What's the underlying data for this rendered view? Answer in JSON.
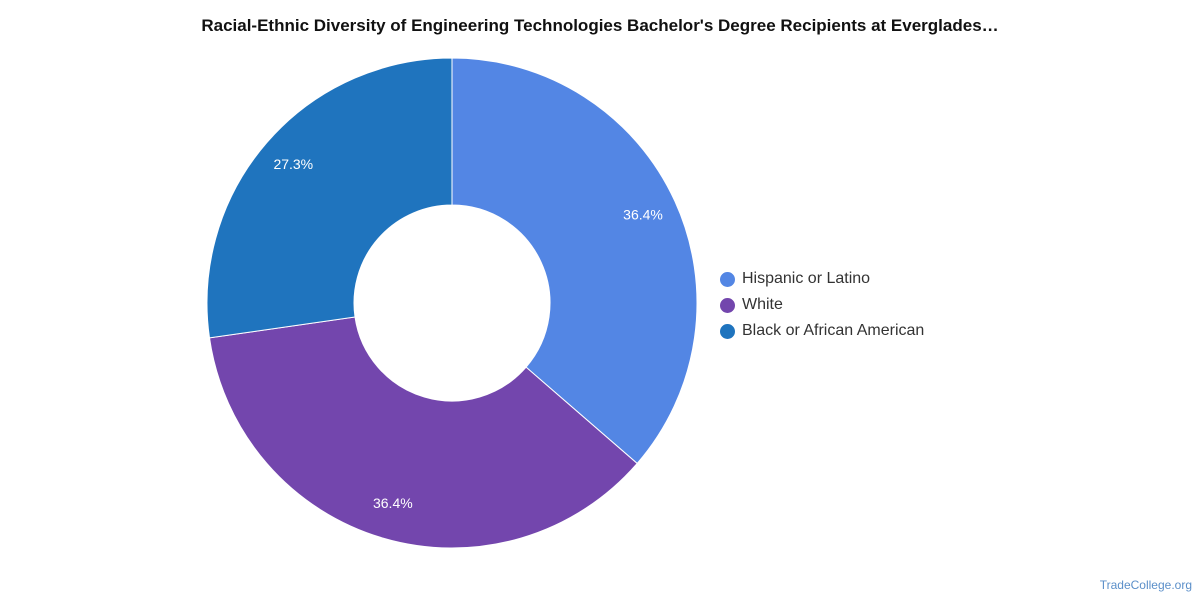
{
  "chart_data": {
    "type": "pie",
    "subtype": "donut",
    "title": "Racial-Ethnic Diversity of Engineering Technologies Bachelor's Degree Recipients at Everglades…",
    "slices": [
      {
        "label": "Hispanic or Latino",
        "value": 36.4,
        "display": "36.4%",
        "color": "#5386E4"
      },
      {
        "label": "White",
        "value": 36.4,
        "display": "36.4%",
        "color": "#7346AD"
      },
      {
        "label": "Black or African American",
        "value": 27.3,
        "display": "27.3%",
        "color": "#1F74BE"
      }
    ],
    "legend_position": "right"
  },
  "watermark": "TradeCollege.org"
}
